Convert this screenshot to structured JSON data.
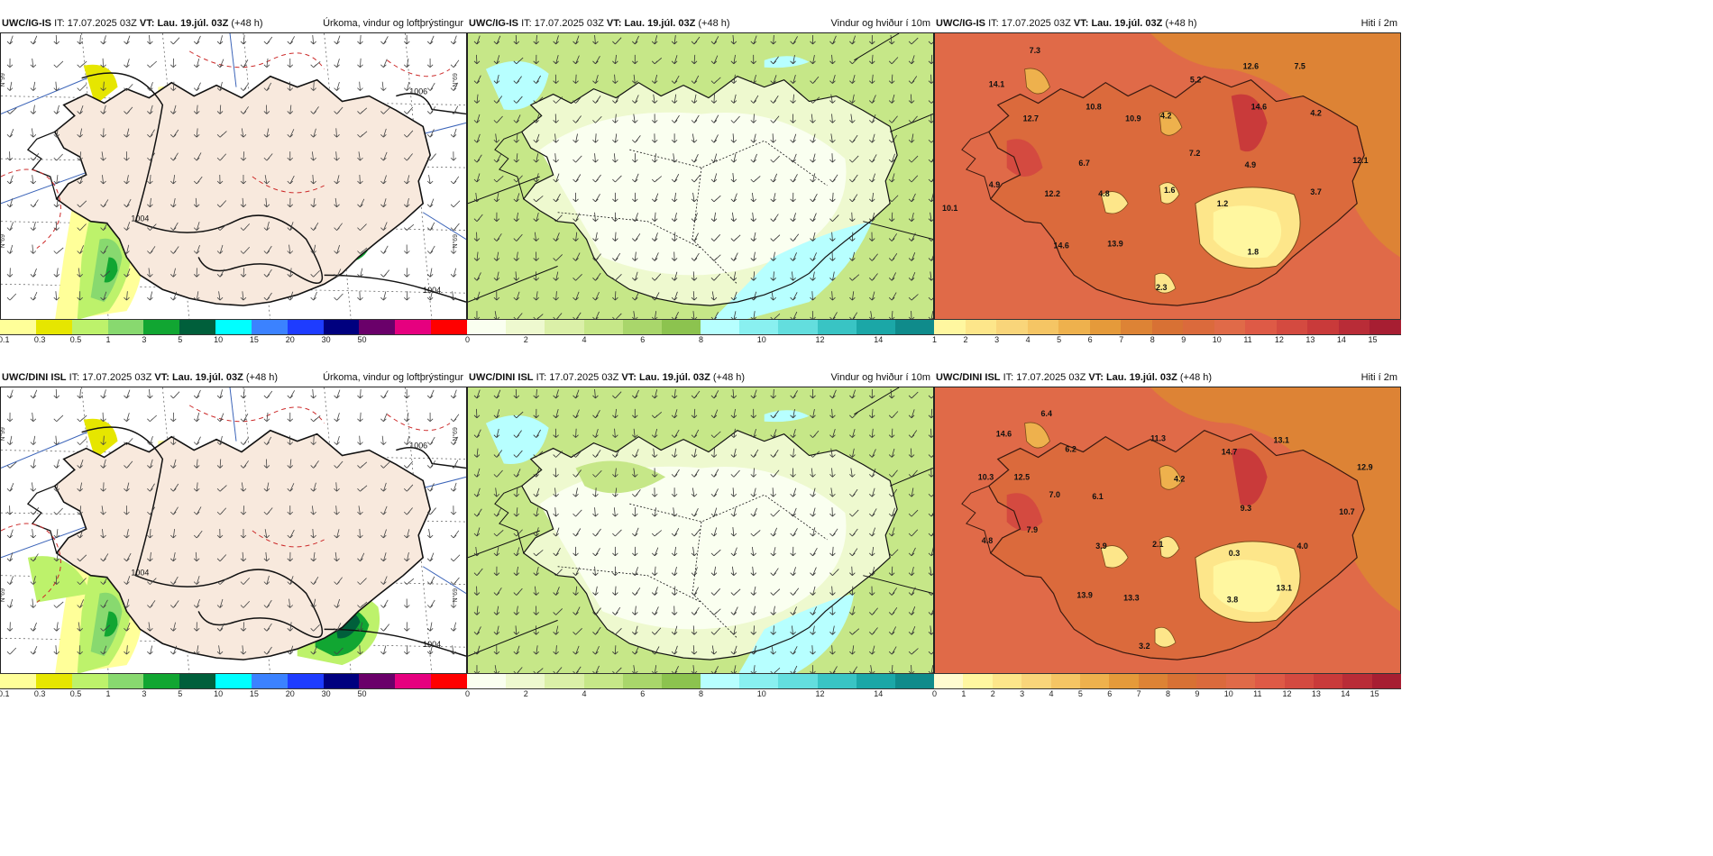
{
  "panels": [
    {
      "model": "UWC/IG-IS",
      "it_label": "IT:",
      "it": "17.07.2025 03Z",
      "vt_label": "VT:",
      "vt": "Lau. 19.júl. 03Z",
      "lead": "(+48 h)",
      "product": "Úrkoma, vindur og loftþrýstingur",
      "ticks": [
        "0.1",
        "0.3",
        "0.5",
        "1",
        "3",
        "5",
        "10",
        "15",
        "20",
        "30",
        "50"
      ],
      "colors": [
        "#ffff99",
        "#e6e600",
        "#bdf26b",
        "#88d96f",
        "#11a632",
        "#005f3b",
        "#00ffff",
        "#3b82ff",
        "#1e3cff",
        "#00007f",
        "#6a006a",
        "#e6007f",
        "#ff0000"
      ],
      "map_type": "precip",
      "isobars": [
        "1006",
        "1004",
        "1004"
      ],
      "map_labels": [
        "N°99",
        "N°69",
        "N°69",
        "N°69"
      ]
    },
    {
      "model": "UWC/IG-IS",
      "it_label": "IT:",
      "it": "17.07.2025 03Z",
      "vt_label": "VT:",
      "vt": "Lau. 19.júl. 03Z",
      "lead": "(+48 h)",
      "product": "Vindur og hviður í 10m",
      "ticks": [
        "0",
        "2",
        "4",
        "6",
        "8",
        "10",
        "12",
        "14"
      ],
      "colors": [
        "#fafff0",
        "#eef9cf",
        "#dbf0a8",
        "#c6e788",
        "#a9d66b",
        "#8cc34f",
        "#b7ffff",
        "#89f0f0",
        "#63dede",
        "#39c4c4",
        "#1ba7a7",
        "#0f8b8b"
      ],
      "map_type": "wind"
    },
    {
      "model": "UWC/IG-IS",
      "it_label": "IT:",
      "it": "17.07.2025 03Z",
      "vt_label": "VT:",
      "vt": "Lau. 19.júl. 03Z",
      "lead": "(+48 h)",
      "product": "Hiti í 2m",
      "ticks": [
        "1",
        "2",
        "3",
        "4",
        "5",
        "6",
        "7",
        "8",
        "9",
        "10",
        "11",
        "12",
        "13",
        "14",
        "15"
      ],
      "colors": [
        "#fff7a0",
        "#fde68a",
        "#f9d57a",
        "#f5c564",
        "#eeb14d",
        "#e59a3a",
        "#dd8335",
        "#d87134",
        "#db6a3c",
        "#e06a48",
        "#de5a46",
        "#d44a40",
        "#c93a3a",
        "#b92c37",
        "#a71e32"
      ],
      "map_type": "temp",
      "temps": [
        "7.3",
        "14.1",
        "12.7",
        "10.8",
        "10.9",
        "5.2",
        "4.2",
        "12.6",
        "7.5",
        "14.6",
        "4.2",
        "7.2",
        "6.7",
        "4.9",
        "12.1",
        "4.9",
        "12.2",
        "4.8",
        "1.6",
        "1.2",
        "3.7",
        "10.1",
        "14.6",
        "13.9",
        "1.8",
        "2.3"
      ]
    },
    {
      "model": "UWC/DINI ISL",
      "it_label": "IT:",
      "it": "17.07.2025 03Z",
      "vt_label": "VT:",
      "vt": "Lau. 19.júl. 03Z",
      "lead": "(+48 h)",
      "product": "Úrkoma, vindur og loftþrýstingur",
      "ticks": [
        "0.1",
        "0.3",
        "0.5",
        "1",
        "3",
        "5",
        "10",
        "15",
        "20",
        "30",
        "50"
      ],
      "colors": [
        "#ffff99",
        "#e6e600",
        "#bdf26b",
        "#88d96f",
        "#11a632",
        "#005f3b",
        "#00ffff",
        "#3b82ff",
        "#1e3cff",
        "#00007f",
        "#6a006a",
        "#e6007f",
        "#ff0000"
      ],
      "map_type": "precip",
      "isobars": [
        "1006",
        "1004",
        "1004"
      ],
      "map_labels": [
        "N°99",
        "N°69",
        "N°69",
        "N°69"
      ]
    },
    {
      "model": "UWC/DINI ISL",
      "it_label": "IT:",
      "it": "17.07.2025 03Z",
      "vt_label": "VT:",
      "vt": "Lau. 19.júl. 03Z",
      "lead": "(+48 h)",
      "product": "Vindur og hviður í 10m",
      "ticks": [
        "0",
        "2",
        "4",
        "6",
        "8",
        "10",
        "12",
        "14"
      ],
      "colors": [
        "#fafff0",
        "#eef9cf",
        "#dbf0a8",
        "#c6e788",
        "#a9d66b",
        "#8cc34f",
        "#b7ffff",
        "#89f0f0",
        "#63dede",
        "#39c4c4",
        "#1ba7a7",
        "#0f8b8b"
      ],
      "map_type": "wind"
    },
    {
      "model": "UWC/DINI ISL",
      "it_label": "IT:",
      "it": "17.07.2025 03Z",
      "vt_label": "VT:",
      "vt": "Lau. 19.júl. 03Z",
      "lead": "(+48 h)",
      "product": "Hiti í 2m",
      "ticks": [
        "0",
        "1",
        "2",
        "3",
        "4",
        "5",
        "6",
        "7",
        "8",
        "9",
        "10",
        "11",
        "12",
        "13",
        "14",
        "15"
      ],
      "colors": [
        "#fffbd0",
        "#fff7a0",
        "#fde68a",
        "#f9d57a",
        "#f5c564",
        "#eeb14d",
        "#e59a3a",
        "#dd8335",
        "#d87134",
        "#db6a3c",
        "#e06a48",
        "#de5a46",
        "#d44a40",
        "#c93a3a",
        "#b92c37",
        "#a71e32"
      ],
      "map_type": "temp",
      "temps": [
        "6.4",
        "14.6",
        "6.2",
        "10.3",
        "12.5",
        "7.0",
        "6.1",
        "11.3",
        "14.7",
        "13.1",
        "12.9",
        "4.2",
        "9.3",
        "10.7",
        "7.9",
        "4.8",
        "3.9",
        "2.1",
        "0.3",
        "4.0",
        "13.9",
        "13.3",
        "3.8",
        "13.1",
        "3.2"
      ]
    }
  ]
}
